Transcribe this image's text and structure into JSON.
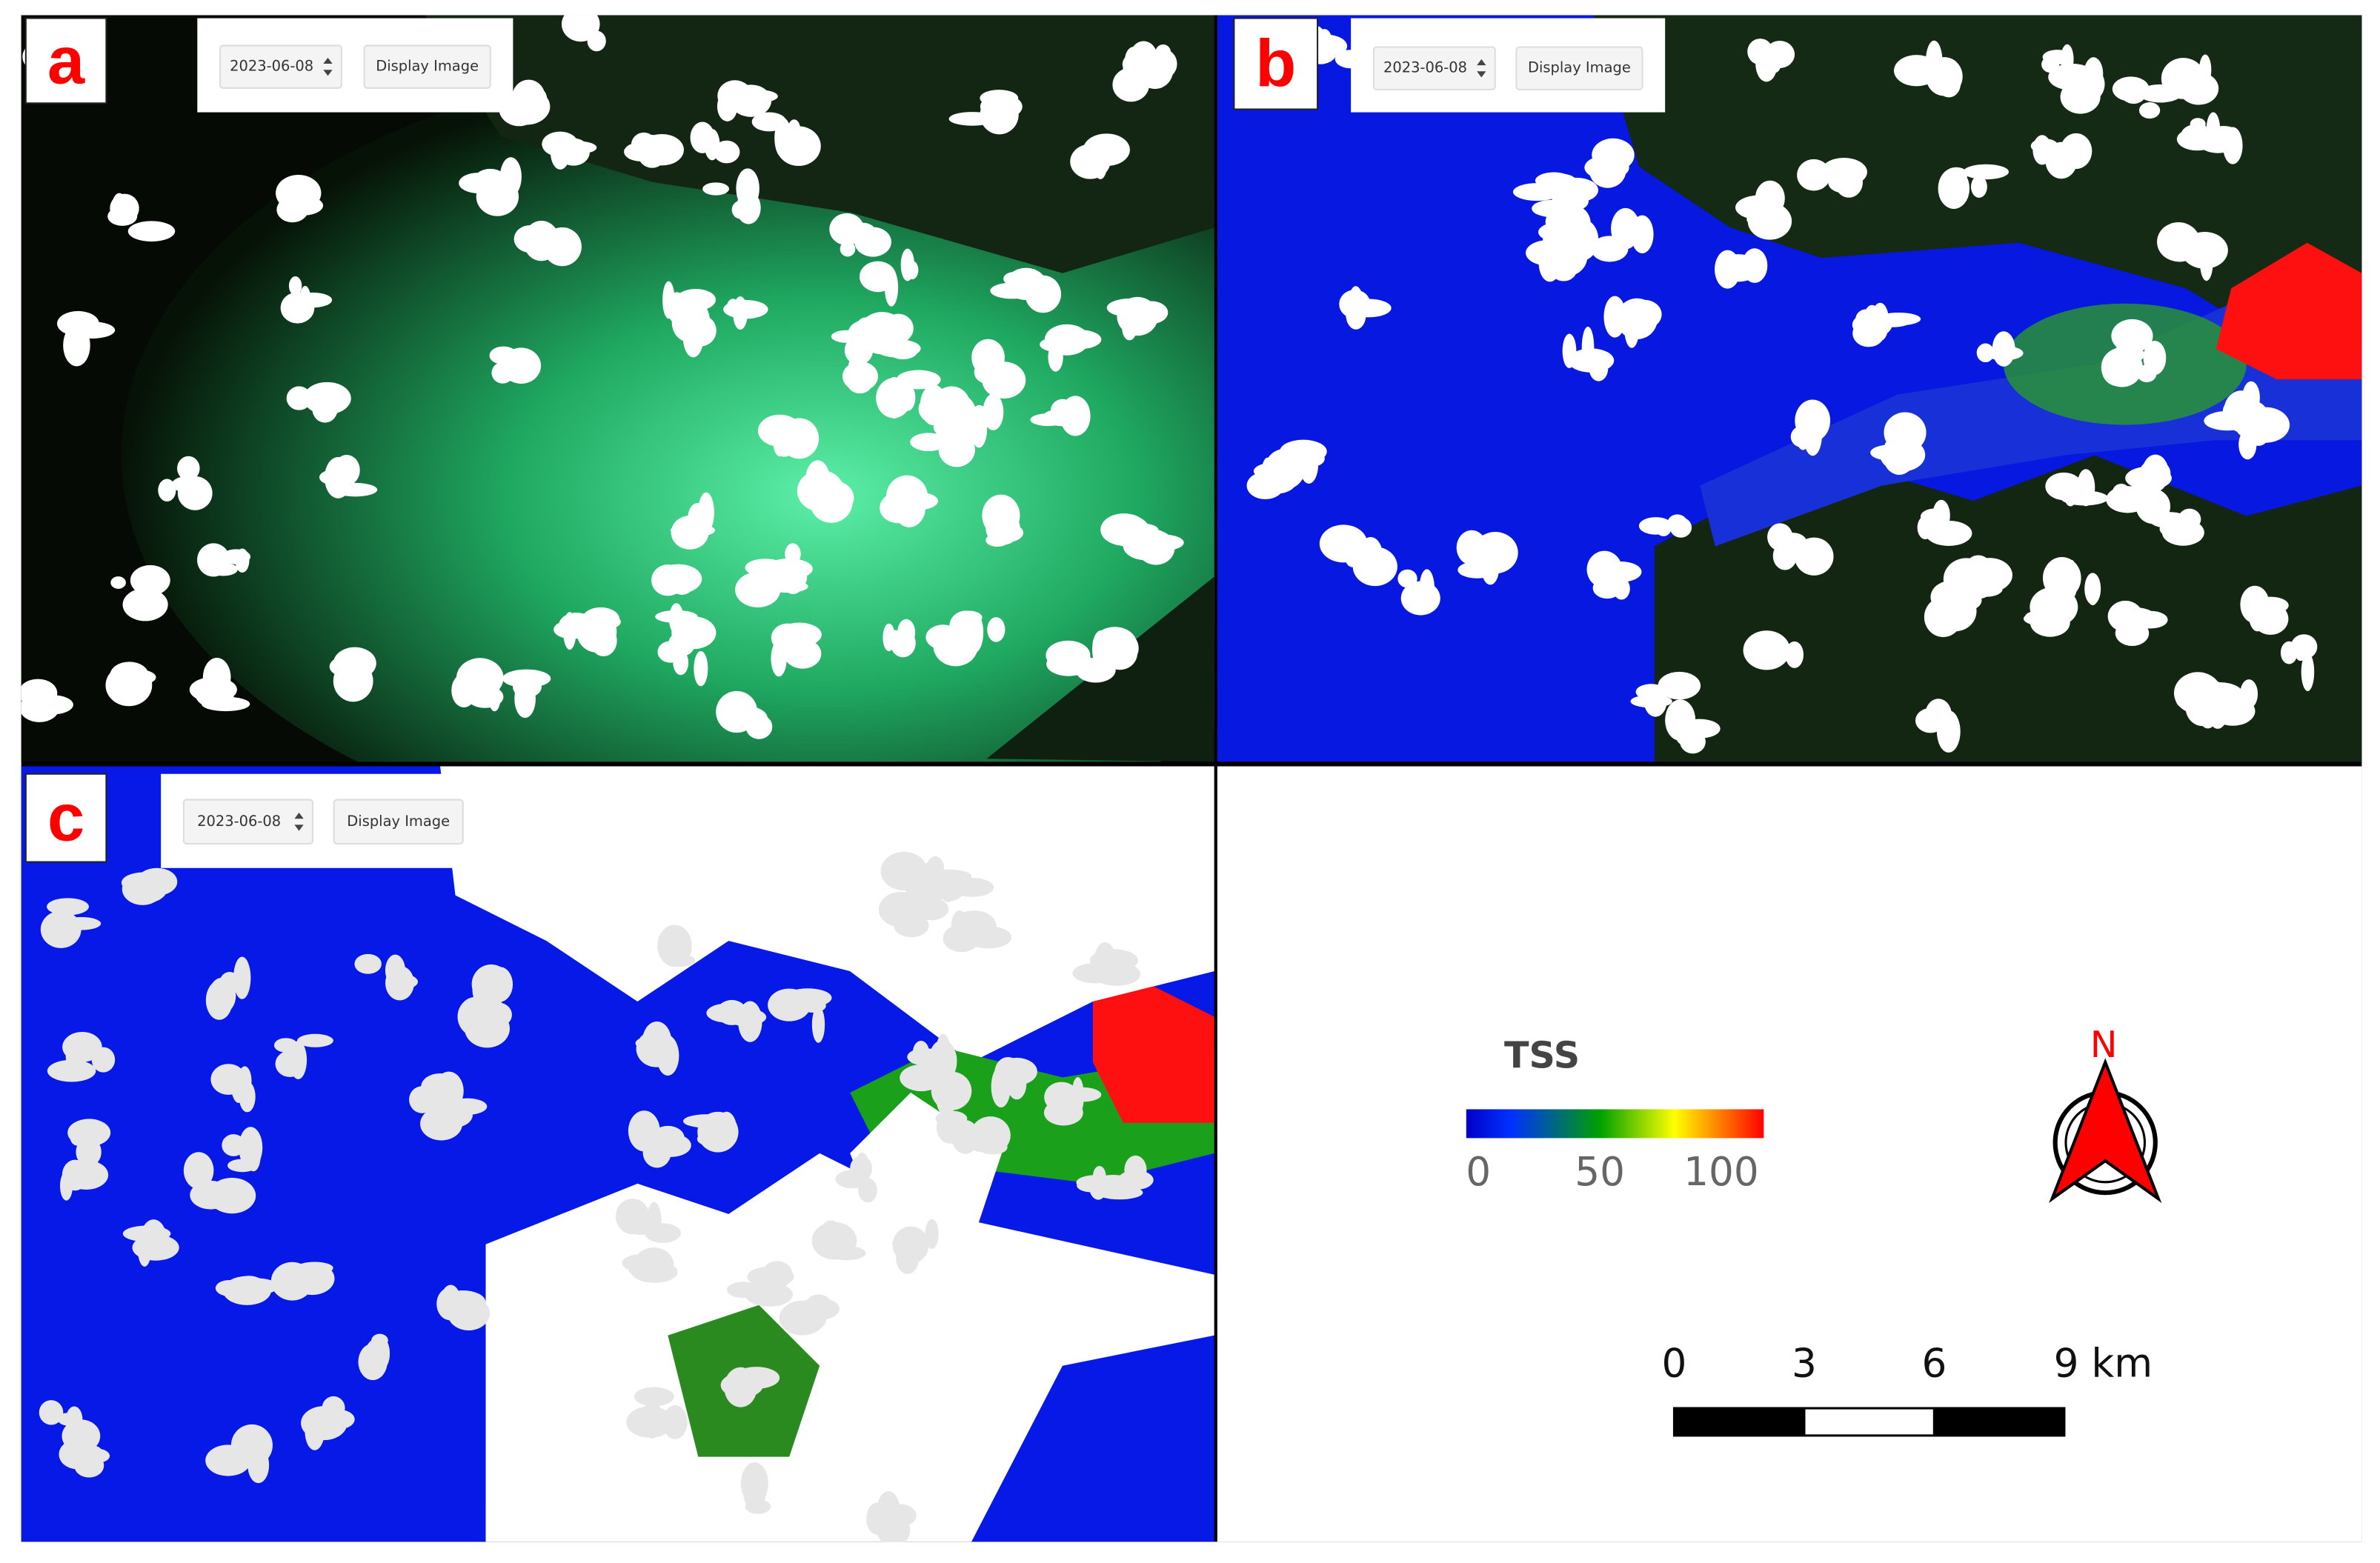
{
  "panels": [
    {
      "label": "a",
      "date": "2023-06-08",
      "button": "Display Image"
    },
    {
      "label": "b",
      "date": "2023-06-08",
      "button": "Display Image"
    },
    {
      "label": "c",
      "date": "2023-06-08",
      "button": "Display Image"
    }
  ],
  "legend": {
    "title": "TSS",
    "lim": [
      0,
      110
    ],
    "ticks": [
      0,
      50,
      100
    ]
  },
  "north": "N",
  "scale_bar": {
    "lim": [
      0,
      9
    ],
    "ticks": [
      0,
      3,
      6,
      {
        "value": 9,
        "label": "9 km"
      }
    ]
  }
}
